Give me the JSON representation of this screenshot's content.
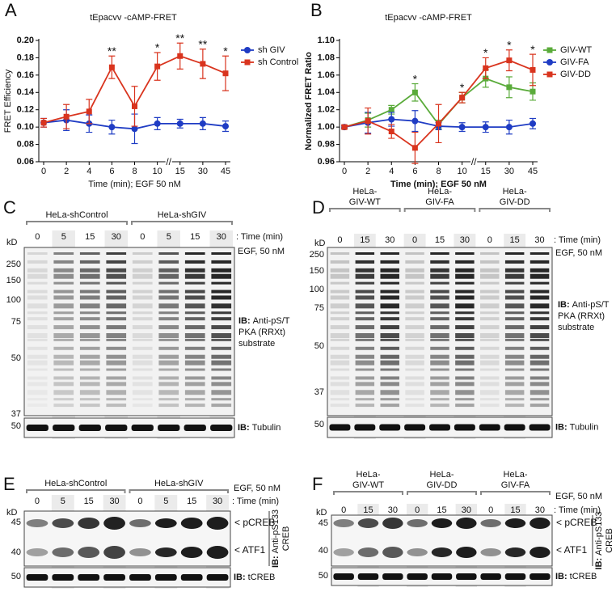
{
  "chart_data": [
    {
      "type": "line",
      "panel_letter": "A",
      "title": "tEpacvv -cAMP-FRET",
      "x_label": "Time (min); EGF 50 nM",
      "y_label": "FRET Efficiency",
      "categories": [
        "0",
        "2",
        "4",
        "6",
        "8",
        "10",
        "15",
        "30",
        "45"
      ],
      "ylim": [
        0.06,
        0.2
      ],
      "yticks": [
        0.06,
        0.08,
        {
          "value": 0.1,
          "label": "0.10"
        },
        0.12,
        0.14,
        0.16,
        0.18,
        {
          "value": 0.2,
          "label": "0.20"
        }
      ],
      "series": [
        {
          "name": "sh GIV",
          "color": "#1f3cc4",
          "marker": "circle",
          "values": [
            0.105,
            0.108,
            0.104,
            0.1,
            0.098,
            0.104,
            0.104,
            0.104,
            0.101
          ],
          "errors": [
            0.005,
            0.012,
            0.01,
            0.008,
            0.017,
            0.007,
            0.005,
            0.007,
            0.006
          ]
        },
        {
          "name": "sh Control",
          "color": "#d9341e",
          "marker": "square",
          "values": [
            0.105,
            0.112,
            0.118,
            0.169,
            0.124,
            0.17,
            0.182,
            0.173,
            0.162
          ],
          "errors": [
            0.005,
            0.014,
            0.014,
            0.013,
            0.023,
            0.016,
            0.015,
            0.017,
            0.02
          ]
        }
      ],
      "significance": [
        null,
        null,
        null,
        "**",
        null,
        "*",
        "**",
        "**",
        "*"
      ],
      "axis_break": true
    },
    {
      "type": "line",
      "panel_letter": "B",
      "title": "tEpacvv -cAMP-FRET",
      "x_label": "Time (min); EGF 50 nM",
      "y_label": "Normalized FRET Ratio",
      "categories": [
        "0",
        "2",
        "4",
        "6",
        "8",
        "10",
        "15",
        "30",
        "45"
      ],
      "ylim": [
        0.96,
        1.1
      ],
      "yticks": [
        0.96,
        0.98,
        {
          "value": 1,
          "label": "1.00"
        },
        1.02,
        1.04,
        1.06,
        1.08,
        {
          "value": 1.1,
          "label": "1.10"
        }
      ],
      "series": [
        {
          "name": "GIV-WT",
          "color": "#5aab3a",
          "marker": "square",
          "values": [
            1,
            1.008,
            1.02,
            1.04,
            1.003,
            1.034,
            1.056,
            1.046,
            1.041
          ],
          "errors": [
            0.002,
            0.008,
            0.005,
            0.01,
            0.005,
            0.006,
            0.01,
            0.012,
            0.01
          ]
        },
        {
          "name": "GIV-FA",
          "color": "#1f3cc4",
          "marker": "circle",
          "values": [
            1,
            1.005,
            1.009,
            1.007,
            1.001,
            1,
            1,
            1,
            1.004
          ],
          "errors": [
            0.002,
            0.012,
            0.008,
            0.012,
            0.004,
            0.005,
            0.006,
            0.008,
            0.006
          ]
        },
        {
          "name": "GIV-DD",
          "color": "#d9341e",
          "marker": "square",
          "values": [
            1,
            1.007,
            0.995,
            0.976,
            1.004,
            1.034,
            1.068,
            1.077,
            1.066
          ],
          "errors": [
            0.002,
            0.015,
            0.008,
            0.018,
            0.022,
            0.006,
            0.012,
            0.012,
            0.018
          ]
        }
      ],
      "significance": [
        null,
        null,
        null,
        "*",
        null,
        "*",
        "*",
        "*",
        "*"
      ],
      "axis_break": true
    }
  ],
  "blots": [
    {
      "panel_letter": "C",
      "groups": [
        [
          "HeLa-shControl"
        ],
        [
          "HeLa-shGIV"
        ]
      ],
      "lanes": [
        "0",
        "5",
        "15",
        "30",
        "0",
        "5",
        "15",
        "30"
      ],
      "time_label": ": Time (min)",
      "egf_label": "EGF, 50 nM",
      "kd_label": "kD",
      "markers": [
        "250",
        "150",
        "100",
        "75",
        "50",
        "37"
      ],
      "antibody_prefix": "IB:",
      "antibody_lines": [
        "Anti-pS/T",
        "PKA (RRXt)",
        "substrate"
      ],
      "loading_marker": "50",
      "loading_prefix": "IB:",
      "loading": "Tubulin"
    },
    {
      "panel_letter": "D",
      "groups": [
        [
          "HeLa-",
          "GIV-WT"
        ],
        [
          "HeLa-",
          "GIV-FA"
        ],
        [
          "HeLa-",
          "GIV-DD"
        ]
      ],
      "lanes": [
        "0",
        "15",
        "30",
        "0",
        "15",
        "30",
        "0",
        "15",
        "30"
      ],
      "time_label": ": Time (min)",
      "egf_label": "EGF, 50 nM",
      "kd_label": "kD",
      "markers": [
        "250",
        "150",
        "100",
        "75",
        "50",
        "37"
      ],
      "antibody_prefix": "IB:",
      "antibody_lines": [
        "Anti-pS/T",
        "PKA (RRXt)",
        "substrate"
      ],
      "loading_marker": "50",
      "loading_prefix": "IB:",
      "loading": "Tubulin"
    },
    {
      "panel_letter": "E",
      "groups": [
        [
          "HeLa-shControl"
        ],
        [
          "HeLa-shGIV"
        ]
      ],
      "lanes": [
        "0",
        "5",
        "15",
        "30",
        "0",
        "5",
        "15",
        "30"
      ],
      "time_label": ": Time (min)",
      "egf_label": "EGF, 50 nM",
      "kd_label": "kD",
      "markers": [
        "45",
        "40"
      ],
      "band_labels": [
        "< pCREB",
        "< ATF1"
      ],
      "antibody_prefix": "IB:",
      "antibody_lines": [
        "Anti-pS133",
        "CREB"
      ],
      "loading_marker": "50",
      "loading_prefix": "IB:",
      "loading": "tCREB"
    },
    {
      "panel_letter": "F",
      "groups": [
        [
          "HeLa-",
          "GIV-WT"
        ],
        [
          "HeLa-",
          "GIV-DD"
        ],
        [
          "HeLa-",
          "GIV-FA"
        ]
      ],
      "lanes": [
        "0",
        "15",
        "30",
        "0",
        "15",
        "30",
        "0",
        "15",
        "30"
      ],
      "time_label": ": Time (min)",
      "egf_label": "EGF, 50 nM",
      "kd_label": "kD",
      "markers": [
        "45",
        "40"
      ],
      "band_labels": [
        "< pCREB",
        "< ATF1"
      ],
      "antibody_prefix": "IB:",
      "antibody_lines": [
        "Anti-pS133",
        "CREB"
      ],
      "loading_marker": "50",
      "loading_prefix": "IB:",
      "loading": "tCREB"
    }
  ]
}
